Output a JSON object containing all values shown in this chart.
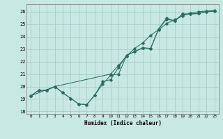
{
  "xlabel": "Humidex (Indice chaleur)",
  "bg_color": "#c8e8e4",
  "grid_color": "#a8ccca",
  "line_color": "#2a6b62",
  "xlim": [
    -0.5,
    23.5
  ],
  "ylim": [
    17.8,
    26.6
  ],
  "yticks": [
    18,
    19,
    20,
    21,
    22,
    23,
    24,
    25,
    26
  ],
  "xticks": [
    0,
    1,
    2,
    3,
    4,
    5,
    6,
    7,
    8,
    9,
    10,
    11,
    12,
    13,
    14,
    15,
    16,
    17,
    18,
    19,
    20,
    21,
    22,
    23
  ],
  "line1_x": [
    0,
    1,
    2,
    3,
    4,
    5,
    6,
    7,
    8,
    9,
    10,
    11,
    12,
    13,
    14,
    15,
    16,
    17,
    18,
    19,
    20,
    21,
    22,
    23
  ],
  "line1_y": [
    19.25,
    19.7,
    19.7,
    20.0,
    19.5,
    19.05,
    18.6,
    18.55,
    19.3,
    20.4,
    20.55,
    21.55,
    22.5,
    22.8,
    23.1,
    23.05,
    24.6,
    25.5,
    25.25,
    25.8,
    25.82,
    25.85,
    26.0,
    26.05
  ],
  "line2_x": [
    0,
    1,
    2,
    3,
    4,
    5,
    6,
    7,
    8,
    9,
    10,
    11,
    12,
    13,
    14,
    15,
    16,
    17,
    18,
    19,
    20,
    21,
    22,
    23
  ],
  "line2_y": [
    19.25,
    19.7,
    19.7,
    20.0,
    19.5,
    19.05,
    18.6,
    18.55,
    19.3,
    20.2,
    20.9,
    21.0,
    22.5,
    22.8,
    23.1,
    23.05,
    24.6,
    25.4,
    25.25,
    25.8,
    25.82,
    25.85,
    26.0,
    26.05
  ],
  "line3_x": [
    0,
    3,
    10,
    11,
    12,
    13,
    14,
    15,
    16,
    17,
    18,
    19,
    20,
    21,
    22,
    23
  ],
  "line3_y": [
    19.25,
    20.0,
    21.0,
    21.7,
    22.45,
    23.05,
    23.5,
    24.1,
    24.55,
    25.05,
    25.35,
    25.65,
    25.9,
    26.0,
    26.05,
    26.1
  ]
}
